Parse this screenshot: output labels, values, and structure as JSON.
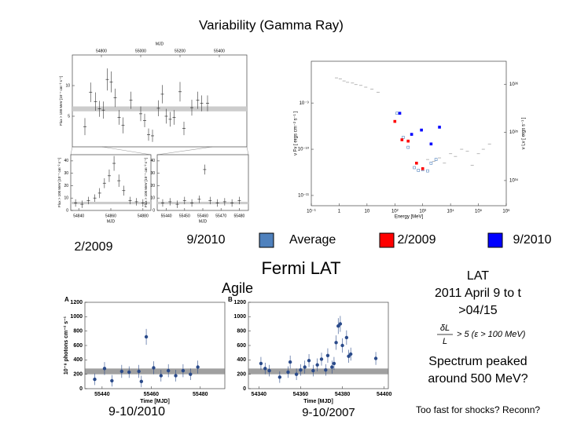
{
  "slide": {
    "title": "Variability (Gamma Ray)",
    "left_date": "2/2009",
    "legend_prefix": "9/2010",
    "heading": "Fermi LAT",
    "agile": "Agile",
    "notes": [
      "LAT",
      "2011 April 9 to t",
      ">04/15"
    ],
    "formula": {
      "numerator": "δL",
      "denominator": "L",
      "relation": "> 5 (ε > 100 MeV)"
    },
    "spectrum": [
      "Spectrum peaked",
      "around 500 MeV?"
    ],
    "caption_a": "9-10/2010",
    "caption_b": "9-10/2007",
    "question": "Too fast for shocks?  Reconn?"
  },
  "chart_data": [
    {
      "type": "scatter",
      "xlabel": "MJD",
      "xaxis": "top",
      "ylabel": "Flux > 100 MeV [10⁻⁷ cm⁻² s⁻¹]",
      "xlim": [
        54652,
        55540
      ],
      "xticks": [
        54800,
        55000,
        55200,
        55400
      ],
      "ylim": [
        0,
        15
      ],
      "yticks": [
        5,
        10
      ],
      "band": [
        5.8,
        6.6
      ],
      "series": [
        {
          "color": "#333333",
          "marker": "dot",
          "x": [
            54716,
            54745,
            54770,
            54790,
            54810,
            54830,
            54850,
            54870,
            54890,
            54910,
            54950,
            55000,
            55020,
            55040,
            55060,
            55090,
            55110,
            55130,
            55150,
            55170,
            55200,
            55220,
            55260,
            55290,
            55310,
            55340
          ],
          "values": [
            3.3,
            8.9,
            7.4,
            6.2,
            6.0,
            11.0,
            10.6,
            8.0,
            4.8,
            3.5,
            7.6,
            5.4,
            4.3,
            2.0,
            1.8,
            6.3,
            8.6,
            5.0,
            4.5,
            4.8,
            9.0,
            3.0,
            6.4,
            7.6,
            7.1,
            7.1
          ],
          "errors": [
            1.4,
            1.6,
            1.5,
            1.3,
            1.4,
            1.8,
            1.7,
            1.5,
            1.2,
            1.3,
            1.4,
            1.2,
            1.1,
            1.0,
            1.0,
            1.3,
            1.5,
            1.2,
            1.2,
            1.2,
            1.6,
            1.1,
            1.3,
            1.4,
            1.3,
            1.3
          ]
        }
      ]
    },
    {
      "type": "scatter",
      "xlabel": "MJD",
      "ylabel": "Flux > 100 MeV [10⁻⁷ cm⁻² s⁻¹]",
      "xlim": [
        54835,
        54885
      ],
      "xticks": [
        54840,
        54860,
        54880
      ],
      "ylim": [
        0,
        45
      ],
      "yticks": [
        0,
        10,
        20,
        30,
        40
      ],
      "band": [
        5,
        7
      ],
      "series": [
        {
          "color": "#333333",
          "marker": "dot",
          "x": [
            54838,
            54842,
            54846,
            54850,
            54853,
            54856,
            54859,
            54862,
            54865,
            54868,
            54872,
            54876,
            54880
          ],
          "values": [
            6,
            5,
            8,
            10,
            14,
            22,
            28,
            38,
            24,
            16,
            8,
            7,
            6
          ],
          "errors": [
            3,
            3,
            3,
            3,
            4,
            4,
            5,
            6,
            5,
            4,
            3,
            3,
            3
          ]
        }
      ]
    },
    {
      "type": "scatter",
      "xlabel": "MJD",
      "ylabel": "Flux > 100 MeV [10⁻⁷ cm⁻² s⁻¹]",
      "xlim": [
        55435,
        55485
      ],
      "xticks": [
        55440,
        55450,
        55460,
        55470,
        55480
      ],
      "ylim": [
        0,
        45
      ],
      "yticks": [
        0,
        10,
        20,
        30,
        40
      ],
      "band": [
        5,
        7
      ],
      "series": [
        {
          "color": "#333333",
          "marker": "dot",
          "x": [
            55438,
            55442,
            55446,
            55450,
            55454,
            55458,
            55461,
            55464,
            55468,
            55472,
            55476,
            55480
          ],
          "values": [
            6,
            7,
            5,
            8,
            6,
            9,
            33,
            8,
            6,
            7,
            6,
            8
          ],
          "errors": [
            3,
            3,
            3,
            3,
            3,
            3,
            4,
            3,
            3,
            3,
            3,
            3
          ]
        }
      ]
    },
    {
      "type": "scatter",
      "log": true,
      "xlabel": "Energy [MeV]",
      "ylabel": "ν Fν [ ergs cm⁻² s⁻¹ ]",
      "y2label": "ν Lν [ ergs s⁻¹ ]",
      "xlim": [
        0.1,
        1000000
      ],
      "xticks": [
        {
          "value": 0.1,
          "label": "10⁻¹"
        },
        {
          "value": 1,
          "label": "1"
        },
        {
          "value": 10,
          "label": "10"
        },
        {
          "value": 100,
          "label": "10²"
        },
        {
          "value": 1000,
          "label": "10³"
        },
        {
          "value": 10000,
          "label": "10⁴"
        },
        {
          "value": 100000,
          "label": "10⁵"
        },
        {
          "value": 1000000,
          "label": "10⁶"
        }
      ],
      "ylim": [
        6e-12,
        8e-09
      ],
      "yticks": [
        {
          "value": 1e-11,
          "label": "10⁻¹¹"
        },
        {
          "value": 1e-10,
          "label": "10⁻¹⁰"
        },
        {
          "value": 1e-09,
          "label": "10⁻⁹"
        }
      ],
      "y2lim": [
        3e+33,
        3e+36
      ],
      "y2ticks": [
        {
          "value": 1e+34,
          "label": "10³⁴"
        },
        {
          "value": 1e+35,
          "label": "10³⁵"
        },
        {
          "value": 1e+36,
          "label": "10³⁶"
        }
      ],
      "series": [
        {
          "color": "#999999",
          "marker": "dot",
          "x": [
            0.8,
            1.1,
            1.5,
            2,
            3,
            4,
            6,
            9,
            15,
            25,
            1500,
            2500,
            4000,
            6000,
            10000,
            15000,
            25000,
            40000,
            60000,
            100000,
            150000,
            250000
          ],
          "values": [
            3.5e-09,
            3.3e-09,
            3e-09,
            2.8e-09,
            2.7e-09,
            2.5e-09,
            2.4e-09,
            2.2e-09,
            2e-09,
            1.7e-09,
            6e-11,
            5.5e-11,
            6.5e-11,
            5e-11,
            8e-11,
            7e-11,
            1e-10,
            9e-11,
            4.5e-11,
            8e-11,
            1e-10,
            1.3e-10
          ]
        },
        {
          "name": "Average",
          "color": "#4f81bd",
          "marker": "open-square",
          "x": [
            120,
            200,
            300,
            500,
            700,
            1000,
            1500,
            2000,
            3000
          ],
          "values": [
            6e-10,
            1.8e-10,
            1.1e-10,
            4e-11,
            3.5e-11,
            3.6e-11,
            3.4e-11,
            5e-11,
            6e-11
          ]
        },
        {
          "name": "2/2009",
          "color": "#ff0000",
          "marker": "square",
          "x": [
            100,
            180,
            300,
            600,
            1000
          ],
          "values": [
            4e-10,
            1.6e-10,
            1.5e-10,
            5e-11,
            3.8e-11
          ]
        },
        {
          "name": "9/2010",
          "color": "#0000ff",
          "marker": "square",
          "x": [
            150,
            400,
            900,
            2000,
            4000
          ],
          "values": [
            6e-10,
            2.1e-10,
            2.6e-10,
            1.3e-10,
            3e-10
          ]
        }
      ]
    },
    {
      "type": "scatter",
      "panel": "A",
      "xlabel": "Time [MJD]",
      "ylabel": "10⁻⁸ photons cm⁻² s⁻¹",
      "xlim": [
        55433,
        55490
      ],
      "xticks": [
        55440,
        55460,
        55480
      ],
      "ylim": [
        0,
        1200
      ],
      "yticks": [
        0,
        200,
        400,
        600,
        800,
        1000,
        1200
      ],
      "band": [
        200,
        280
      ],
      "series": [
        {
          "color": "#2a4a8a",
          "marker": "circle",
          "x": [
            55437,
            55441,
            55444,
            55448,
            55451,
            55455,
            55456,
            55458,
            55461,
            55464,
            55467,
            55470,
            55473,
            55476,
            55479
          ],
          "values": [
            130,
            280,
            110,
            240,
            230,
            240,
            100,
            720,
            290,
            180,
            250,
            180,
            250,
            200,
            300
          ],
          "errors": [
            80,
            90,
            80,
            90,
            80,
            90,
            80,
            110,
            90,
            80,
            90,
            80,
            90,
            80,
            90
          ]
        }
      ]
    },
    {
      "type": "scatter",
      "panel": "B",
      "xlabel": "Time [MJD]",
      "xlim": [
        54335,
        54402
      ],
      "xticks": [
        54340,
        54360,
        54380,
        54400
      ],
      "ylim": [
        0,
        1200
      ],
      "yticks": [
        0,
        200,
        400,
        600,
        800,
        1000,
        1200
      ],
      "band": [
        200,
        280
      ],
      "series": [
        {
          "color": "#2a4a8a",
          "marker": "circle",
          "x": [
            54341,
            54343,
            54345,
            54350,
            54354,
            54355,
            54358,
            54360,
            54362,
            54364,
            54366,
            54368,
            54370,
            54372,
            54373,
            54375,
            54376,
            54377,
            54378,
            54379,
            54380,
            54382,
            54383,
            54384,
            54396
          ],
          "values": [
            350,
            280,
            250,
            160,
            230,
            370,
            200,
            260,
            300,
            390,
            250,
            330,
            410,
            260,
            460,
            300,
            350,
            640,
            870,
            900,
            600,
            710,
            450,
            480,
            420
          ],
          "errors": [
            90,
            80,
            80,
            80,
            80,
            90,
            80,
            80,
            90,
            90,
            80,
            90,
            90,
            80,
            100,
            90,
            90,
            100,
            110,
            110,
            100,
            100,
            90,
            90,
            90
          ]
        }
      ]
    }
  ]
}
